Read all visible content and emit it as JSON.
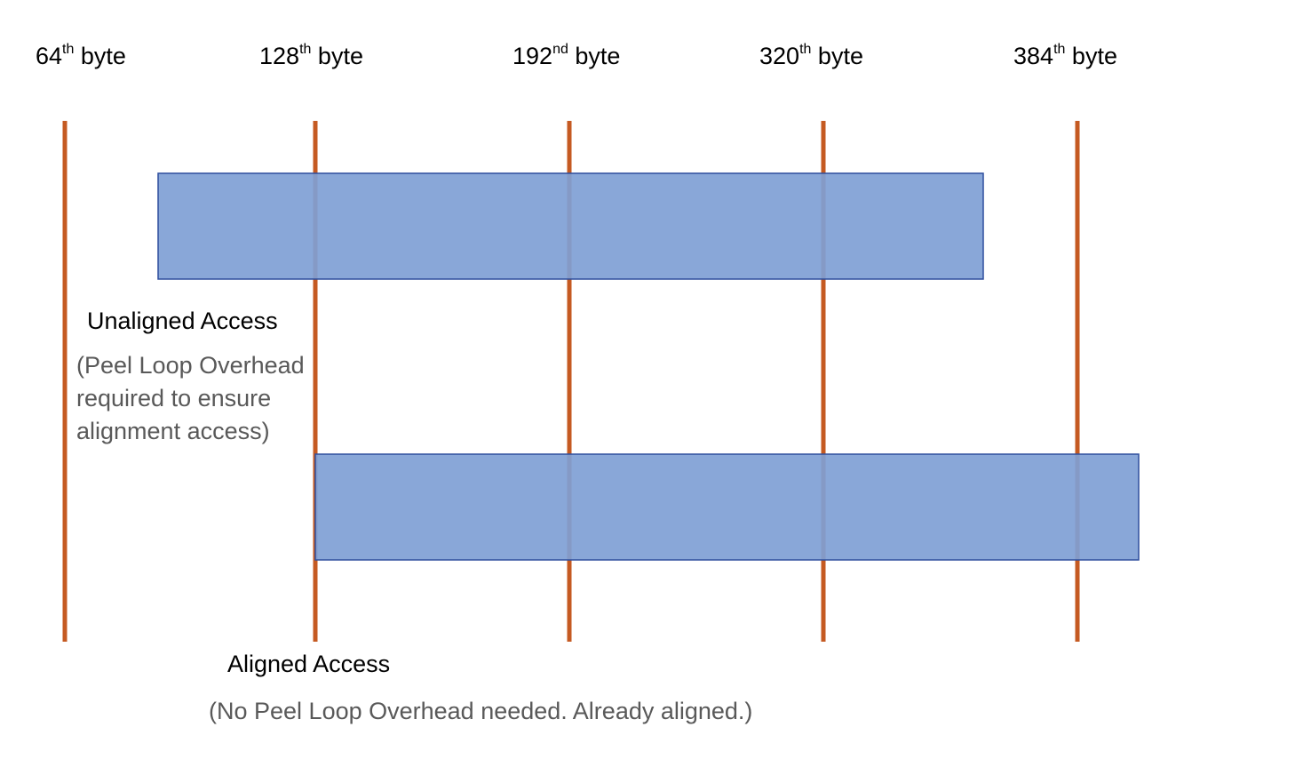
{
  "boundaries": [
    {
      "number": "64",
      "suffix": "th",
      "unit": "byte"
    },
    {
      "number": "128",
      "suffix": "th",
      "unit": "byte"
    },
    {
      "number": "192",
      "suffix": "nd",
      "unit": "byte"
    },
    {
      "number": "320",
      "suffix": "th",
      "unit": "byte"
    },
    {
      "number": "384",
      "suffix": "th",
      "unit": "byte"
    }
  ],
  "unaligned": {
    "title": "Unaligned Access",
    "note": "(Peel Loop Overhead required to ensure alignment access)"
  },
  "aligned": {
    "title": "Aligned Access",
    "note": "(No Peel Loop Overhead needed. Already aligned.)"
  },
  "colors": {
    "boundary_line": "#c55a22",
    "block_fill": "#7f9fd5",
    "block_stroke": "#2f4f9e",
    "note_text": "#595959"
  }
}
